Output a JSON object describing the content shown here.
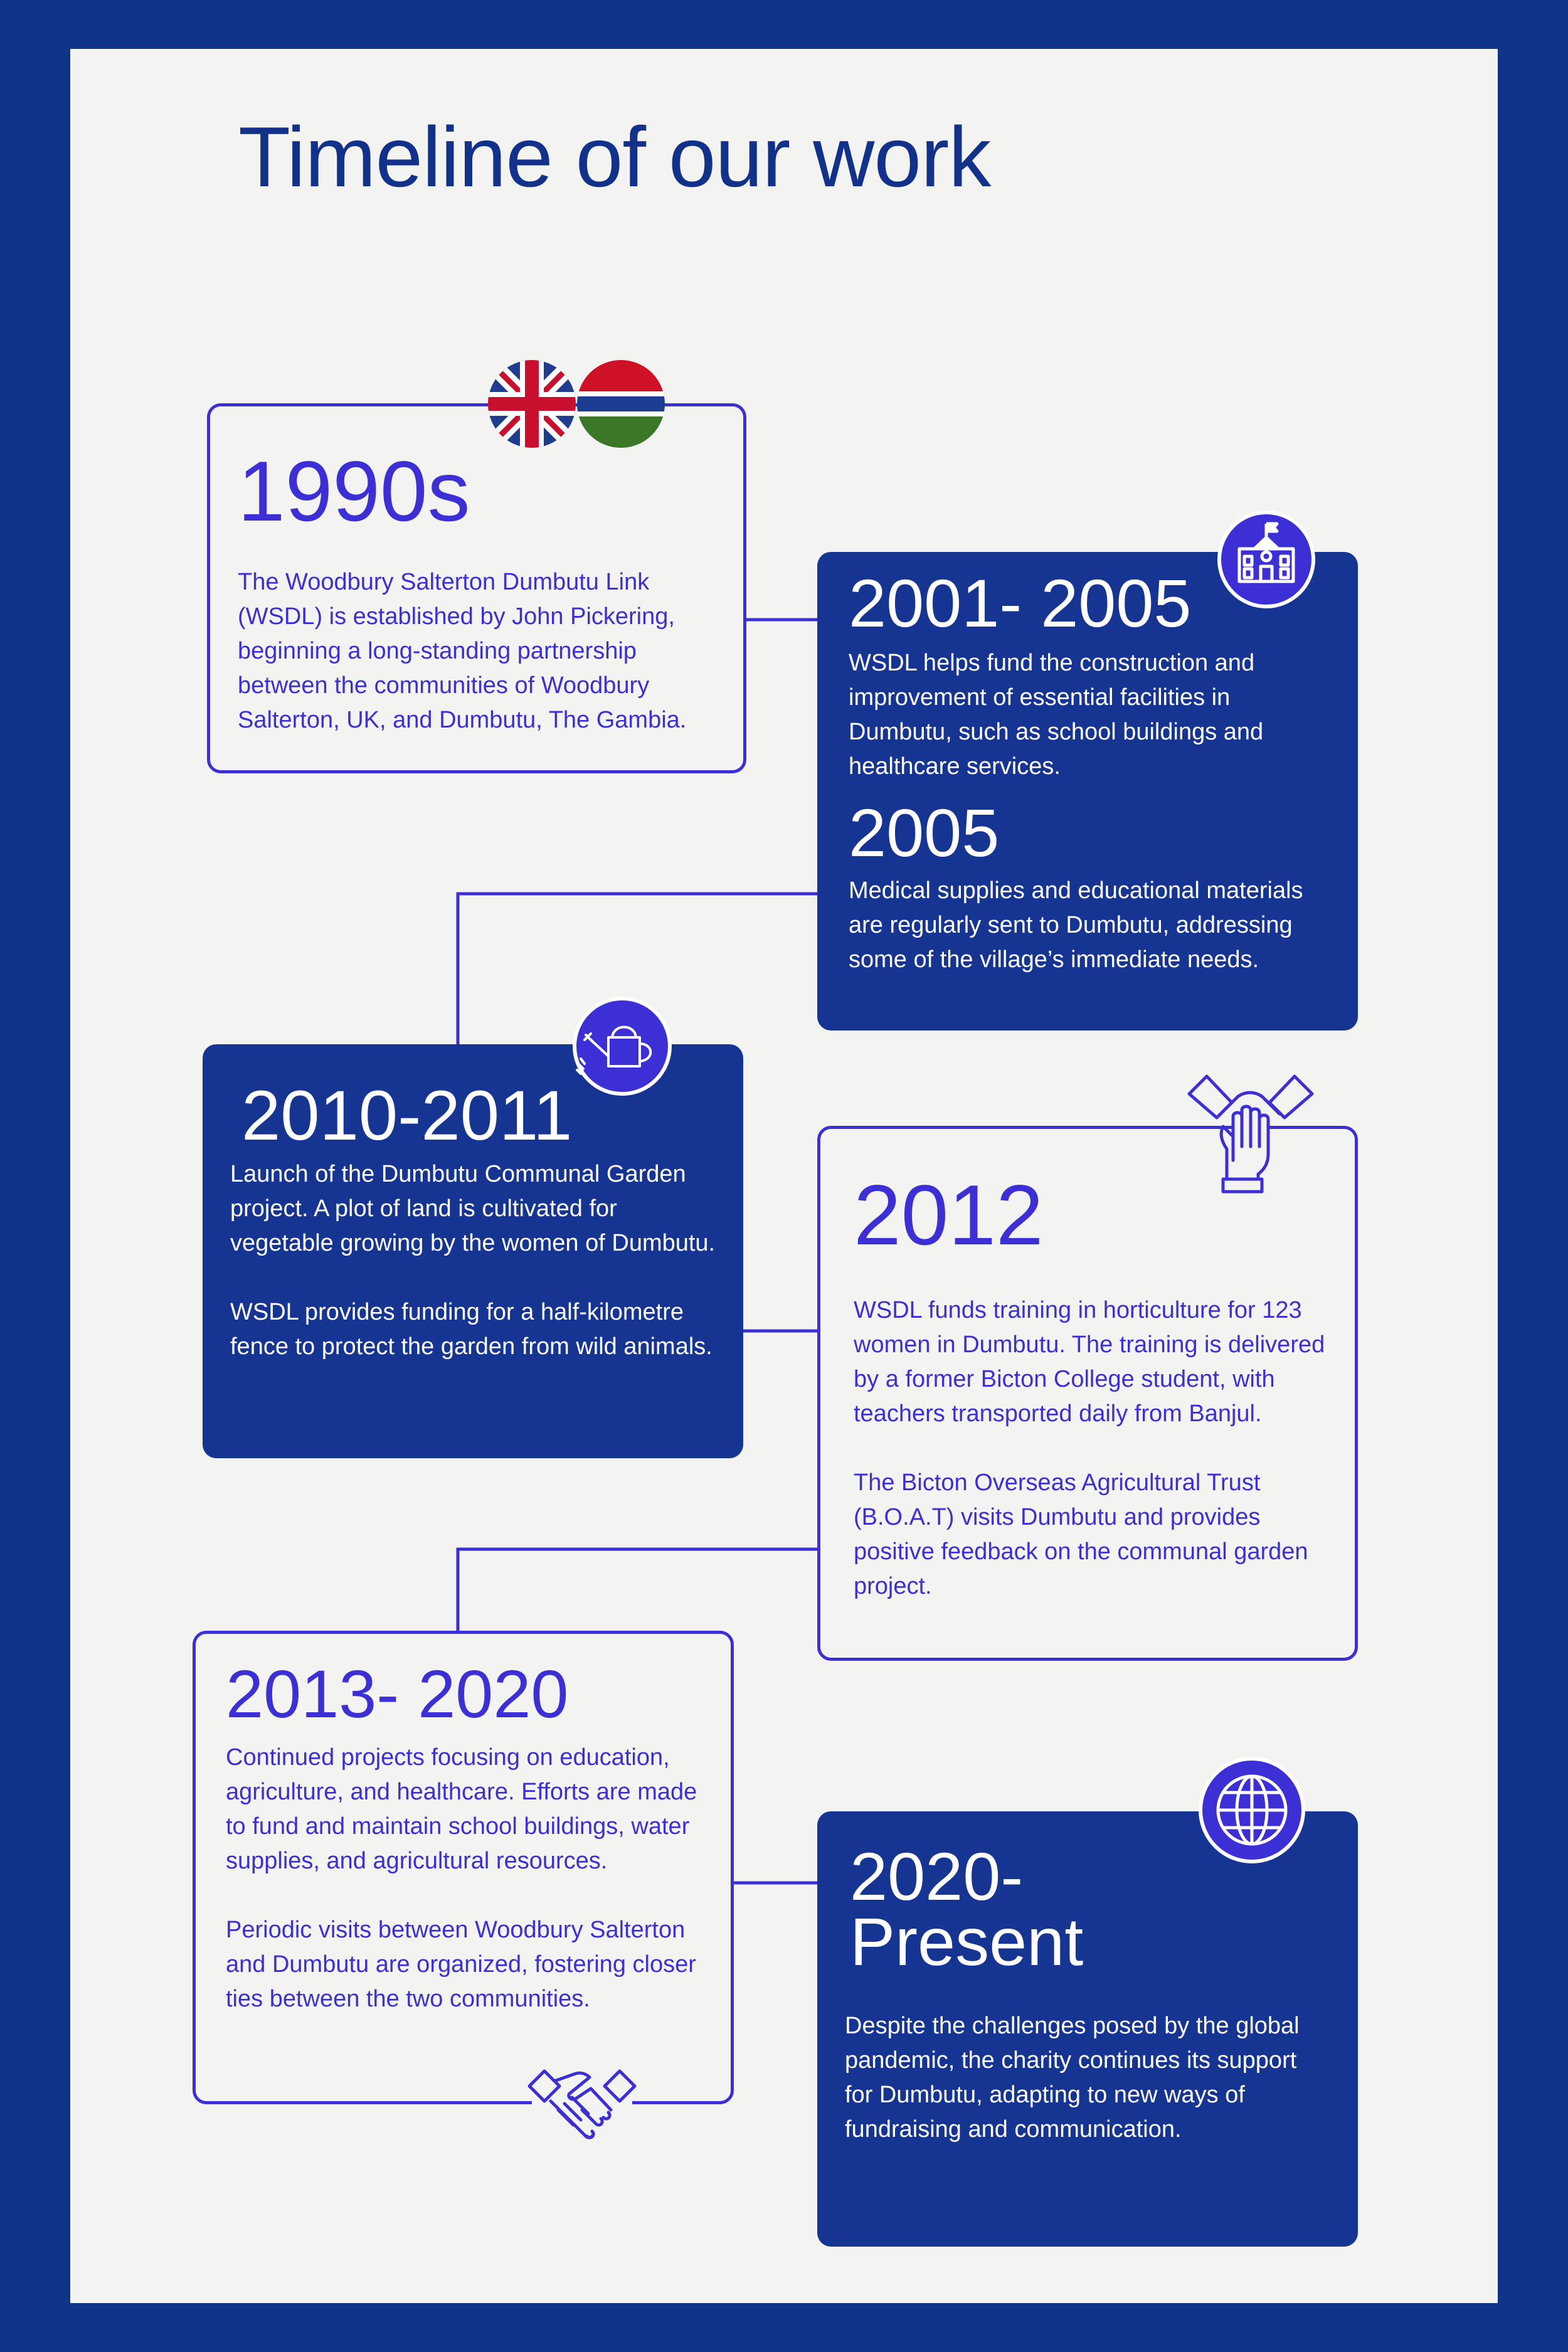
{
  "title": "Timeline of our work",
  "colors": {
    "frame": "#0e3387",
    "page": "#f3f3f1",
    "accent": "#3c2fd6",
    "dark_card": "#163593",
    "title": "#12318a"
  },
  "icons": {
    "flags": [
      "uk-flag-icon",
      "gambia-flag-icon"
    ],
    "school": "school-icon",
    "watering_can": "watering-can-icon",
    "hands": "hands-together-icon",
    "handshake": "handshake-icon",
    "globe": "globe-icon"
  },
  "timeline": {
    "e1990s": {
      "year": "1990s",
      "text": "The Woodbury Salterton Dumbutu Link (WSDL) is established by John Pickering, beginning a long-standing partnership between the communities of Woodbury Salterton, UK, and Dumbutu, The Gambia."
    },
    "e2001": {
      "year": "2001- 2005",
      "text": "WSDL helps fund the construction and improvement of essential facilities in Dumbutu, such as school buildings and healthcare services."
    },
    "e2005": {
      "year": "2005",
      "text": "Medical supplies and educational materials are regularly sent to Dumbutu, addressing some of the village’s immediate needs."
    },
    "e2010": {
      "year": "2010-2011",
      "text1": "Launch of the Dumbutu Communal Garden project. A plot of land is cultivated for vegetable growing by the women of Dumbutu.",
      "text2": "WSDL provides funding for a half-kilometre fence to protect the garden from wild animals."
    },
    "e2012": {
      "year": "2012",
      "text1": "WSDL funds training in horticulture for 123 women in Dumbutu. The training is delivered by a former Bicton College student, with teachers transported daily from Banjul.",
      "text2": "The Bicton Overseas Agricultural Trust (B.O.A.T) visits Dumbutu and provides positive feedback on the communal garden project."
    },
    "e2013": {
      "year": "2013- 2020",
      "text1": "Continued projects focusing on education, agriculture, and healthcare. Efforts are made to fund and maintain school buildings, water supplies, and agricultural resources.",
      "text2": "Periodic visits between Woodbury Salterton and Dumbutu are organized, fostering closer ties between the two communities."
    },
    "e2020": {
      "year_line1": "2020-",
      "year_line2": "Present",
      "text": "Despite the challenges posed by the global pandemic, the charity continues its support for Dumbutu, adapting to new ways of fundraising and communication."
    }
  }
}
